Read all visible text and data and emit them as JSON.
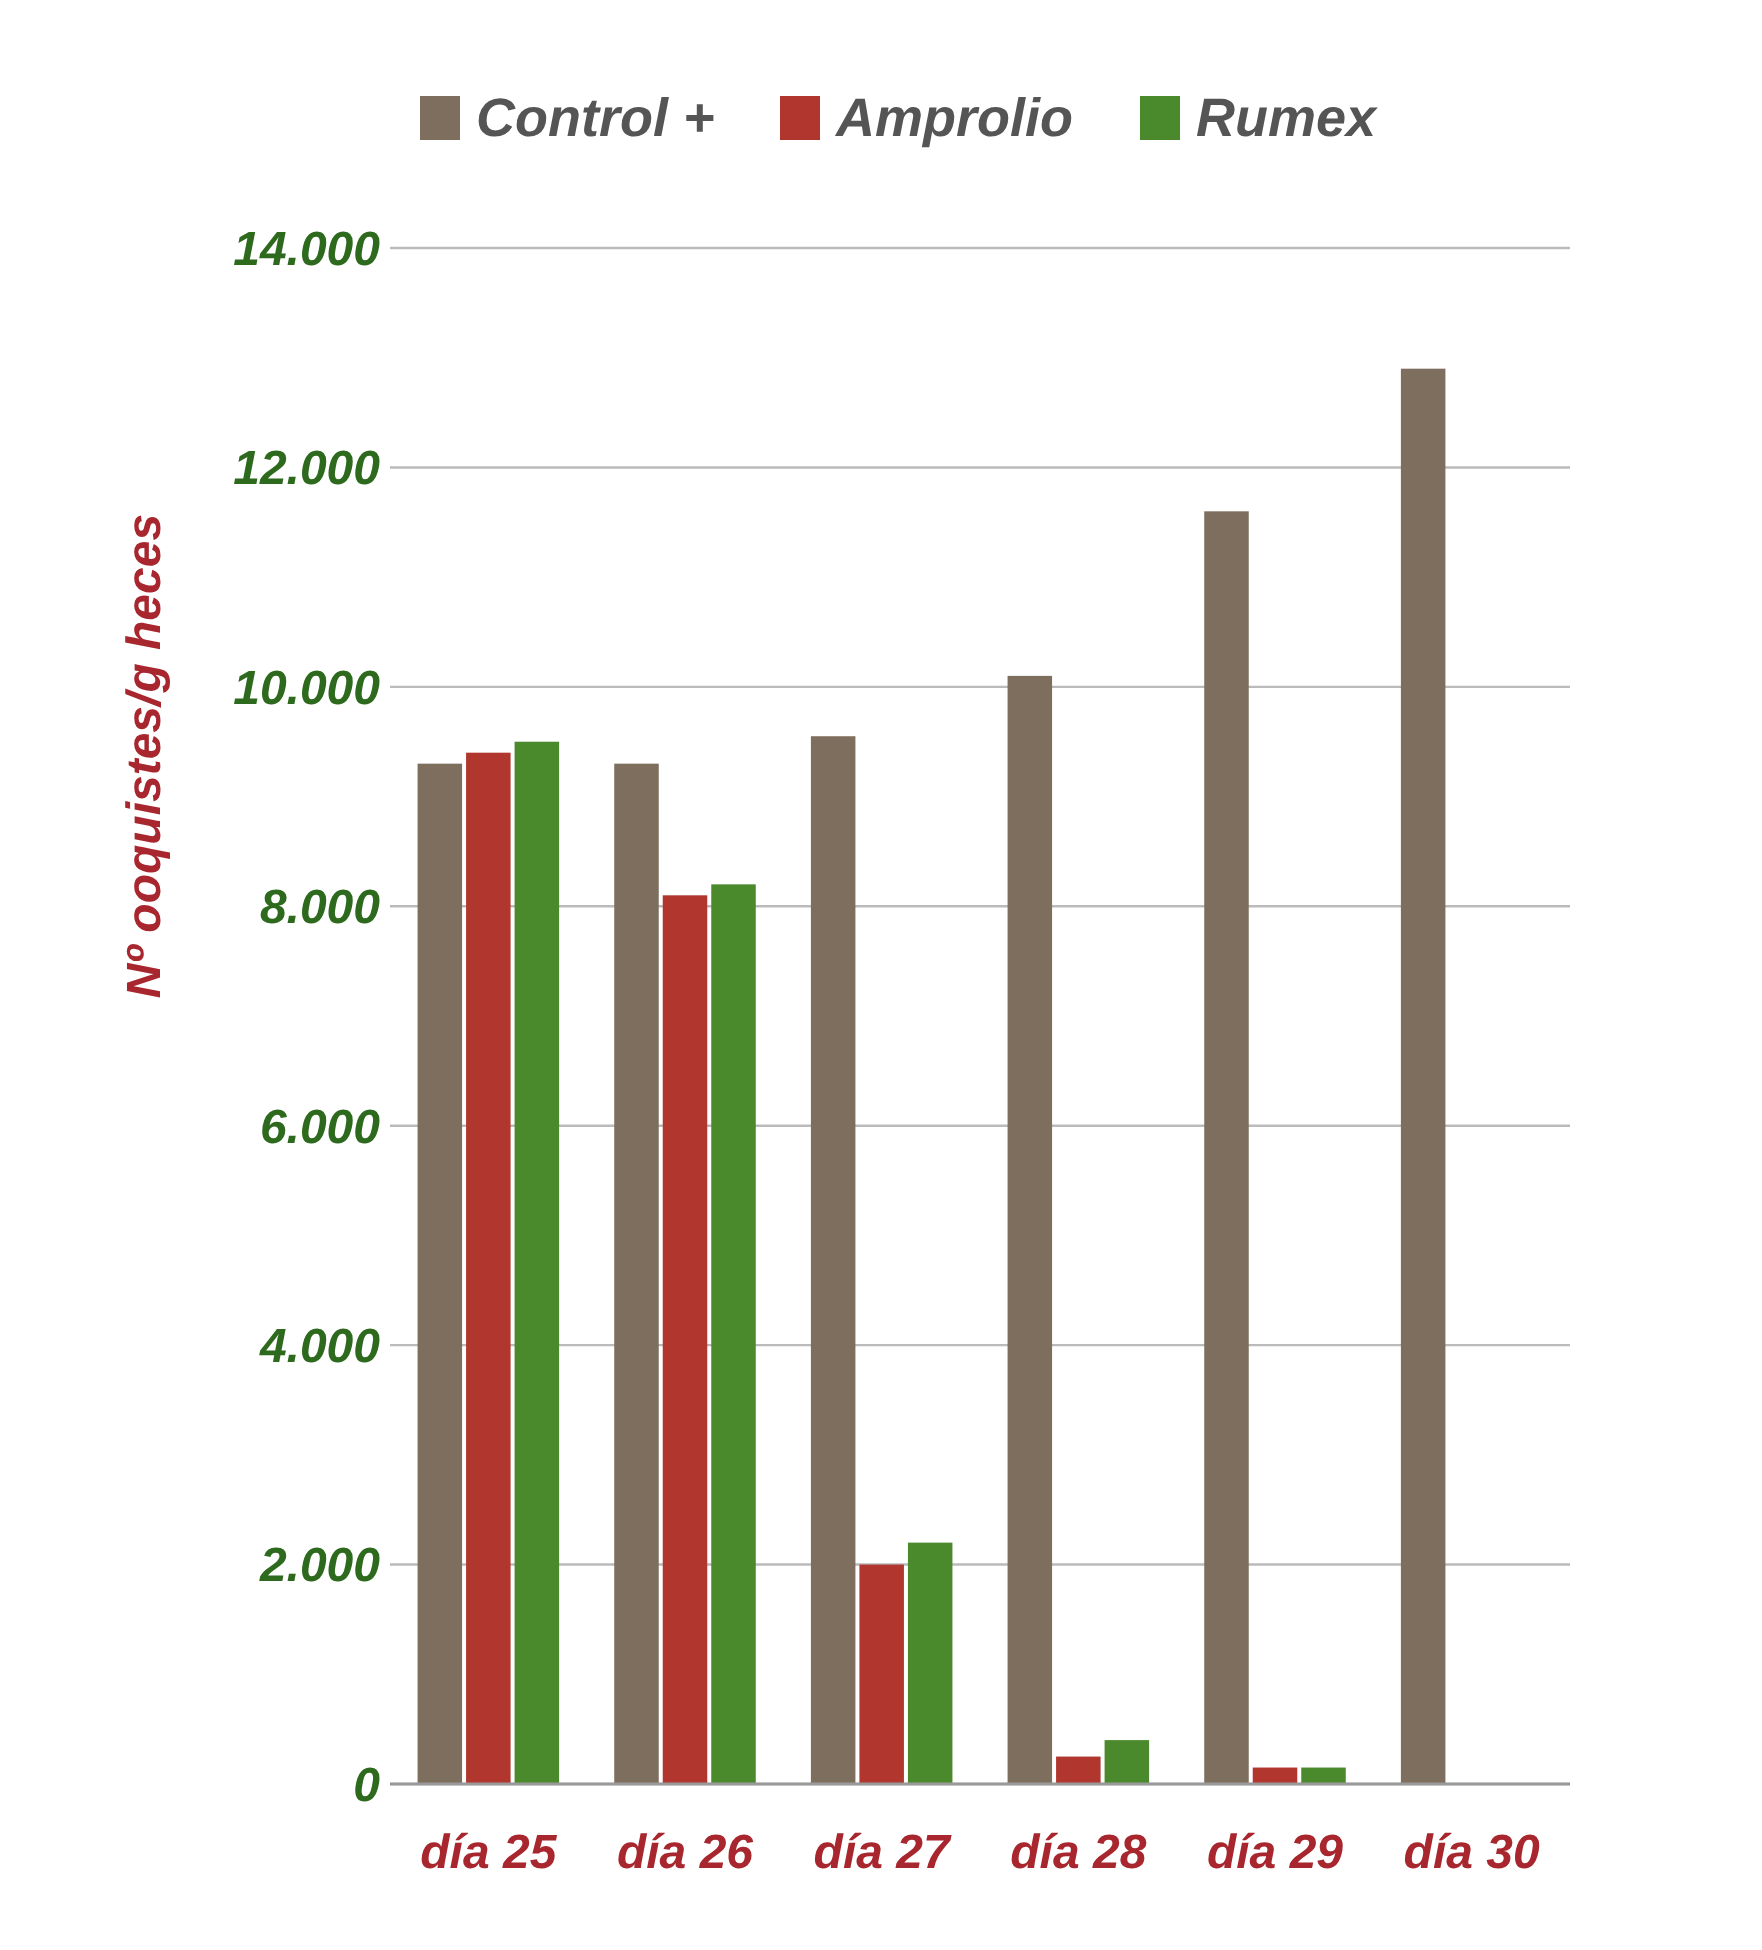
{
  "chart_data": {
    "type": "bar",
    "ylabel": "Nº ooquistes/g heces",
    "categories": [
      "día 25",
      "día 26",
      "día 27",
      "día 28",
      "día 29",
      "día 30"
    ],
    "series": [
      {
        "name": "Control +",
        "color": "#7e6e5e",
        "values": [
          9300,
          9300,
          9550,
          10100,
          11600,
          12900
        ]
      },
      {
        "name": "Amprolio",
        "color": "#b0362e",
        "values": [
          9400,
          8100,
          2000,
          250,
          150,
          null
        ]
      },
      {
        "name": "Rumex",
        "color": "#4a8a2c",
        "values": [
          9500,
          8200,
          2200,
          400,
          150,
          null
        ]
      }
    ],
    "ylim": [
      0,
      14000
    ],
    "yticks": [
      0,
      {
        "value": 2000,
        "label": "2.000"
      },
      {
        "value": 4000,
        "label": "4.000"
      },
      {
        "value": 6000,
        "label": "6.000"
      },
      {
        "value": 8000,
        "label": "8.000"
      },
      {
        "value": 10000,
        "label": "10.000"
      },
      {
        "value": 12000,
        "label": "12.000"
      },
      {
        "value": 14000,
        "label": "14.000"
      }
    ],
    "grid": "y",
    "legend": "top"
  }
}
